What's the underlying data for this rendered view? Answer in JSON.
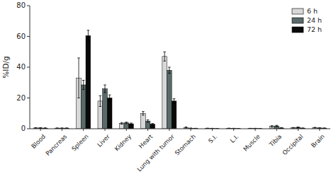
{
  "chart_data": {
    "type": "bar",
    "ylabel": "%ID/g",
    "categories": [
      "Blood",
      "Pancreas",
      "Spleen",
      "Liver",
      "Kidney",
      "Heart",
      "Lung with tumor",
      "Stomach",
      "S.I.",
      "L.I.",
      "Muscle",
      "Tibia",
      "Occipital",
      "Brain"
    ],
    "series": [
      {
        "name": "6 h",
        "color": "#d8d8d8",
        "values": [
          0.5,
          0.4,
          33.0,
          18.0,
          3.5,
          10.0,
          47.0,
          0.8,
          0.3,
          0.3,
          0.2,
          1.5,
          0.6,
          0.7
        ],
        "errors": [
          0.2,
          0.1,
          13.0,
          3.5,
          0.5,
          1.2,
          3.0,
          0.4,
          0.1,
          0.1,
          0.1,
          0.5,
          0.2,
          0.2
        ]
      },
      {
        "name": "24 h",
        "color": "#5a6a6a",
        "values": [
          0.5,
          0.4,
          28.5,
          26.0,
          3.8,
          5.0,
          38.0,
          0.3,
          0.2,
          0.2,
          0.2,
          1.8,
          0.9,
          0.5
        ],
        "errors": [
          0.2,
          0.1,
          3.0,
          2.5,
          0.5,
          0.8,
          2.0,
          0.2,
          0.1,
          0.1,
          0.1,
          0.4,
          0.2,
          0.1
        ]
      },
      {
        "name": "72 h",
        "color": "#0a0a0a",
        "values": [
          0.4,
          0.4,
          60.5,
          20.0,
          3.2,
          3.0,
          18.0,
          0.2,
          0.1,
          0.1,
          0.1,
          0.5,
          0.4,
          0.4
        ],
        "errors": [
          0.2,
          0.1,
          3.5,
          2.0,
          0.5,
          0.4,
          1.5,
          0.1,
          0.1,
          0.1,
          0.1,
          0.3,
          0.1,
          0.1
        ]
      }
    ],
    "ylim": [
      0,
      80
    ],
    "yticks": [
      0,
      20,
      40,
      60,
      80
    ],
    "grid": false,
    "legend": "upper right"
  }
}
